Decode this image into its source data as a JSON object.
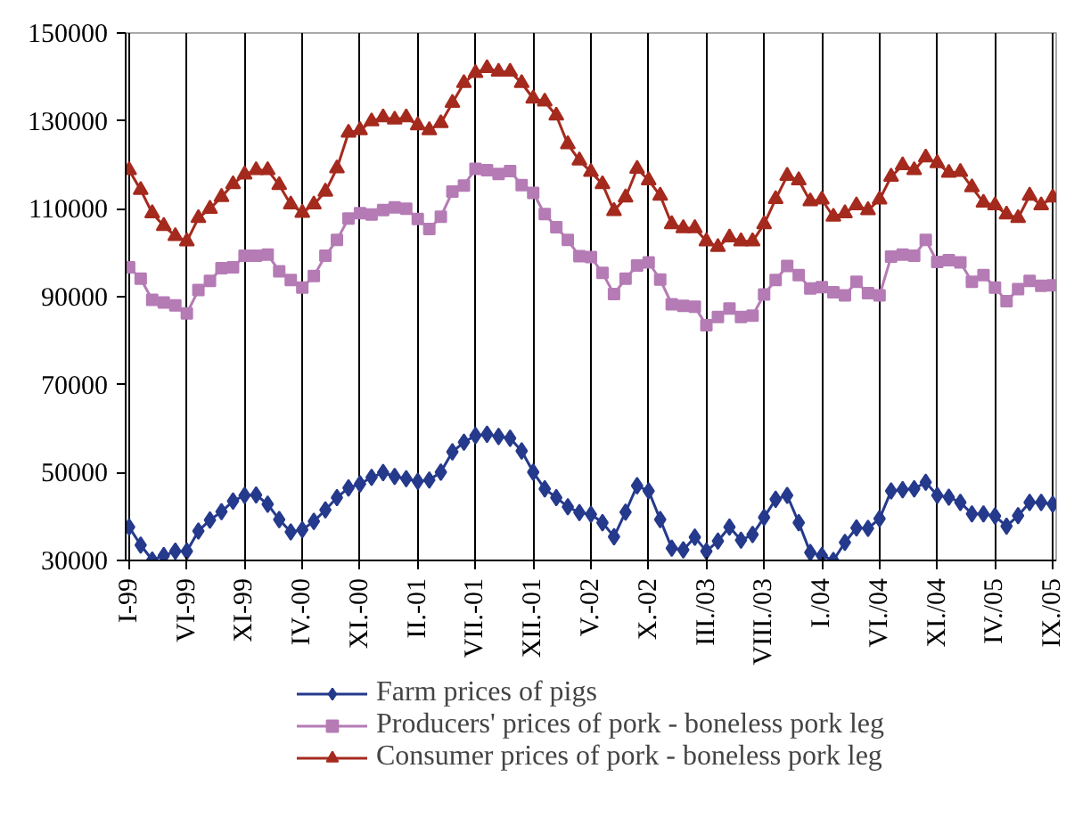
{
  "chart_data": {
    "type": "line",
    "categories": [
      "I-99",
      null,
      null,
      null,
      null,
      "VI-99",
      null,
      null,
      null,
      null,
      "XI-99",
      null,
      null,
      null,
      null,
      "IV.-00",
      null,
      null,
      null,
      null,
      "XI.-00",
      null,
      null,
      null,
      null,
      "II.-01",
      null,
      null,
      null,
      null,
      "VII.-01",
      null,
      null,
      null,
      null,
      "XII.-01",
      null,
      null,
      null,
      null,
      "V.-02",
      null,
      null,
      null,
      null,
      "X.-02",
      null,
      null,
      null,
      null,
      "III./03",
      null,
      null,
      null,
      null,
      "VIII./03",
      null,
      null,
      null,
      null,
      "I./04",
      null,
      null,
      null,
      null,
      "VI./04",
      null,
      null,
      null,
      null,
      "XI./04",
      null,
      null,
      null,
      null,
      "IV./05",
      null,
      null,
      null,
      null,
      "IX./05"
    ],
    "series": [
      {
        "name": "Farm prices of pigs",
        "color": "#253a8c",
        "marker": "diamond",
        "values": [
          37600,
          33500,
          30100,
          31100,
          32100,
          32100,
          36700,
          39200,
          41100,
          43500,
          44800,
          44900,
          42800,
          39300,
          36500,
          37000,
          38900,
          41500,
          44300,
          46500,
          47400,
          48900,
          50000,
          49100,
          48600,
          48000,
          48300,
          50100,
          54700,
          56900,
          58400,
          58700,
          58200,
          57800,
          54900,
          50100,
          46300,
          44300,
          42200,
          40900,
          40500,
          38600,
          35400,
          41000,
          47000,
          45800,
          39300,
          32800,
          32400,
          35300,
          32100,
          34400,
          37600,
          34600,
          35900,
          39800,
          43900,
          44800,
          38600,
          31800,
          31100,
          30000,
          34100,
          37400,
          37300,
          39500,
          45800,
          46100,
          46300,
          47800,
          44800,
          44400,
          43200,
          40600,
          40600,
          40100,
          37800,
          40200,
          43200,
          43200,
          42800
        ]
      },
      {
        "name": "Producers' prices of pork - boneless pork leg",
        "color": "#b57bb5",
        "marker": "square",
        "values": [
          96700,
          94100,
          89300,
          88700,
          88000,
          86200,
          91500,
          93600,
          96500,
          96700,
          99300,
          99300,
          99600,
          95800,
          93800,
          92100,
          94700,
          99300,
          102900,
          107800,
          109000,
          108700,
          109700,
          110300,
          110000,
          107700,
          105400,
          108200,
          113900,
          115300,
          119100,
          118800,
          117900,
          118600,
          115400,
          113600,
          108800,
          105800,
          102900,
          99200,
          99000,
          95400,
          90600,
          94100,
          97100,
          97800,
          93900,
          88300,
          87900,
          87700,
          83500,
          85400,
          87300,
          85400,
          85700,
          90500,
          93800,
          97000,
          94900,
          91900,
          92200,
          91000,
          90300,
          93400,
          90800,
          90300,
          99100,
          99600,
          99300,
          102900,
          97900,
          98300,
          97800,
          93400,
          94900,
          92100,
          89000,
          91700,
          93600,
          92500,
          92600
        ]
      },
      {
        "name": "Consumer prices of pork - boneless pork leg",
        "color": "#a52a1e",
        "marker": "triangle",
        "values": [
          118800,
          114300,
          109000,
          106100,
          103800,
          102600,
          107900,
          110000,
          112700,
          115600,
          117800,
          118800,
          118800,
          115400,
          111000,
          109100,
          111000,
          113900,
          119200,
          127300,
          127900,
          129900,
          130800,
          130300,
          130800,
          129000,
          127900,
          129500,
          134100,
          138600,
          140900,
          142000,
          141200,
          141200,
          138600,
          135100,
          134400,
          131200,
          124700,
          121000,
          118400,
          115600,
          109500,
          112600,
          119100,
          116500,
          113000,
          106500,
          105600,
          105600,
          102600,
          101300,
          103500,
          102600,
          102600,
          106500,
          112200,
          117500,
          116500,
          111700,
          112100,
          108200,
          109000,
          110800,
          109700,
          112100,
          117300,
          119900,
          118800,
          121700,
          120400,
          118200,
          118400,
          114900,
          111400,
          110800,
          108700,
          107900,
          113000,
          110800,
          112600
        ]
      }
    ],
    "ylim": [
      30000,
      150000
    ],
    "yticks": [
      30000,
      50000,
      70000,
      90000,
      110000,
      130000,
      150000
    ],
    "grid": "x",
    "legend": "bottom",
    "line_style": "solid"
  }
}
